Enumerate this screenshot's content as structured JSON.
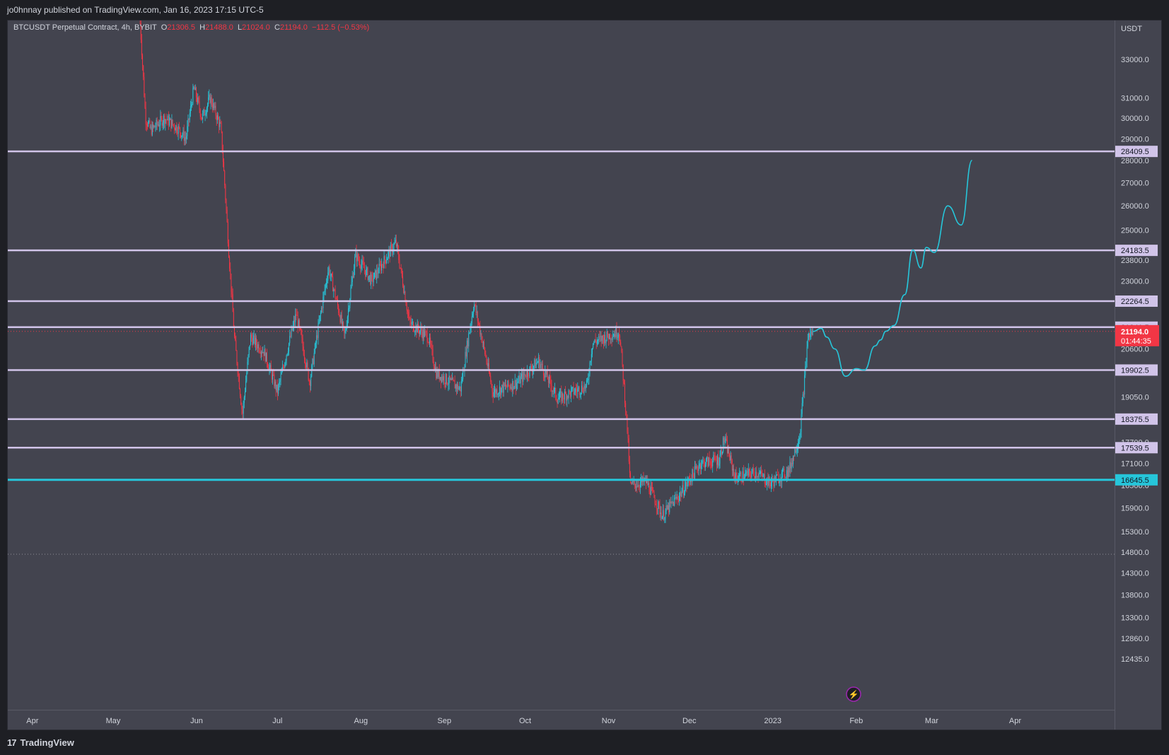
{
  "header": {
    "published_line": "jo0hnnay published on TradingView.com, Jan 16, 2023 17:15 UTC-5"
  },
  "legend": {
    "symbol": "BTCUSDT Perpetual Contract, 4h, BYBIT",
    "open_label": "O",
    "open": "21306.5",
    "high_label": "H",
    "high": "21488.0",
    "low_label": "L",
    "low": "21024.0",
    "close_label": "C",
    "close": "21194.0",
    "change": "−112.5 (−0.53%)"
  },
  "price_axis": {
    "currency": "USDT",
    "ticks": [
      {
        "label": "33000.0",
        "value": 33000
      },
      {
        "label": "31000.0",
        "value": 31000
      },
      {
        "label": "30000.0",
        "value": 30000
      },
      {
        "label": "29000.0",
        "value": 29000
      },
      {
        "label": "28000.0",
        "value": 28000
      },
      {
        "label": "27000.0",
        "value": 27000
      },
      {
        "label": "26000.0",
        "value": 26000
      },
      {
        "label": "25000.0",
        "value": 25000
      },
      {
        "label": "23800.0",
        "value": 23800
      },
      {
        "label": "23000.0",
        "value": 23000
      },
      {
        "label": "20600.0",
        "value": 20600
      },
      {
        "label": "19050.0",
        "value": 19050
      },
      {
        "label": "17700.0",
        "value": 17700
      },
      {
        "label": "17100.0",
        "value": 17100
      },
      {
        "label": "16500.0",
        "value": 16500
      },
      {
        "label": "15900.0",
        "value": 15900
      },
      {
        "label": "15300.0",
        "value": 15300
      },
      {
        "label": "14800.0",
        "value": 14800
      },
      {
        "label": "14300.0",
        "value": 14300
      },
      {
        "label": "13800.0",
        "value": 13800
      },
      {
        "label": "13300.0",
        "value": 13300
      },
      {
        "label": "12860.0",
        "value": 12860
      },
      {
        "label": "12435.0",
        "value": 12435
      }
    ],
    "current_price": {
      "label": "21194.0",
      "countdown": "01:44:35",
      "value": 21194,
      "color": "#f23645"
    }
  },
  "horizontal_levels": [
    {
      "label": "28409.5",
      "value": 28409.5,
      "color": "#d1c4e9"
    },
    {
      "label": "24183.5",
      "value": 24183.5,
      "color": "#d1c4e9"
    },
    {
      "label": "22264.5",
      "value": 22264.5,
      "color": "#d1c4e9"
    },
    {
      "label": "21341.5",
      "value": 21341.5,
      "color": "#d1c4e9"
    },
    {
      "label": "19902.5",
      "value": 19902.5,
      "color": "#d1c4e9"
    },
    {
      "label": "18375.5",
      "value": 18375.5,
      "color": "#d1c4e9"
    },
    {
      "label": "17539.5",
      "value": 17539.5,
      "color": "#d1c4e9"
    },
    {
      "label": "16645.5",
      "value": 16645.5,
      "color": "#26c6da"
    }
  ],
  "time_axis": {
    "labels": [
      "Apr",
      "May",
      "Jun",
      "Jul",
      "Aug",
      "Sep",
      "Oct",
      "Nov",
      "Dec",
      "2023",
      "Feb",
      "Mar",
      "Apr"
    ]
  },
  "colors": {
    "up": "#26c6da",
    "down": "#f23645",
    "background": "#43444f",
    "projection": "#26c6da"
  },
  "chart_data": {
    "type": "candlestick",
    "title": "BTCUSDT Perpetual Contract, 4h, BYBIT",
    "price_range": [
      12200,
      35000
    ],
    "price_path": [
      {
        "x": "2022-05-11",
        "y": 35000
      },
      {
        "x": "2022-05-13",
        "y": 30000
      },
      {
        "x": "2022-05-15",
        "y": 29400
      },
      {
        "x": "2022-05-20",
        "y": 30000
      },
      {
        "x": "2022-05-25",
        "y": 29500
      },
      {
        "x": "2022-05-28",
        "y": 29000
      },
      {
        "x": "2022-05-31",
        "y": 31500
      },
      {
        "x": "2022-06-03",
        "y": 30000
      },
      {
        "x": "2022-06-06",
        "y": 31000
      },
      {
        "x": "2022-06-10",
        "y": 29500
      },
      {
        "x": "2022-06-13",
        "y": 24000
      },
      {
        "x": "2022-06-15",
        "y": 21000
      },
      {
        "x": "2022-06-18",
        "y": 18500
      },
      {
        "x": "2022-06-21",
        "y": 21000
      },
      {
        "x": "2022-06-26",
        "y": 20500
      },
      {
        "x": "2022-07-01",
        "y": 19200
      },
      {
        "x": "2022-07-08",
        "y": 21800
      },
      {
        "x": "2022-07-13",
        "y": 19500
      },
      {
        "x": "2022-07-20",
        "y": 23500
      },
      {
        "x": "2022-07-26",
        "y": 21000
      },
      {
        "x": "2022-07-30",
        "y": 24000
      },
      {
        "x": "2022-08-05",
        "y": 23000
      },
      {
        "x": "2022-08-14",
        "y": 24500
      },
      {
        "x": "2022-08-19",
        "y": 21500
      },
      {
        "x": "2022-08-26",
        "y": 21000
      },
      {
        "x": "2022-08-29",
        "y": 19800
      },
      {
        "x": "2022-09-07",
        "y": 19300
      },
      {
        "x": "2022-09-12",
        "y": 22200
      },
      {
        "x": "2022-09-19",
        "y": 19200
      },
      {
        "x": "2022-09-28",
        "y": 19500
      },
      {
        "x": "2022-10-06",
        "y": 20200
      },
      {
        "x": "2022-10-13",
        "y": 19000
      },
      {
        "x": "2022-10-24",
        "y": 19400
      },
      {
        "x": "2022-10-26",
        "y": 20800
      },
      {
        "x": "2022-11-05",
        "y": 21200
      },
      {
        "x": "2022-11-08",
        "y": 18000
      },
      {
        "x": "2022-11-09",
        "y": 16500
      },
      {
        "x": "2022-11-15",
        "y": 16600
      },
      {
        "x": "2022-11-21",
        "y": 15700
      },
      {
        "x": "2022-11-28",
        "y": 16300
      },
      {
        "x": "2022-12-05",
        "y": 17100
      },
      {
        "x": "2022-12-12",
        "y": 17200
      },
      {
        "x": "2022-12-14",
        "y": 17800
      },
      {
        "x": "2022-12-18",
        "y": 16700
      },
      {
        "x": "2022-12-26",
        "y": 16850
      },
      {
        "x": "2022-12-31",
        "y": 16550
      },
      {
        "x": "2023-01-07",
        "y": 16900
      },
      {
        "x": "2023-01-11",
        "y": 17900
      },
      {
        "x": "2023-01-13",
        "y": 19800
      },
      {
        "x": "2023-01-14",
        "y": 21000
      },
      {
        "x": "2023-01-16",
        "y": 21194
      }
    ],
    "projection_path": [
      {
        "x": "2023-01-16",
        "y": 21194
      },
      {
        "x": "2023-01-19",
        "y": 21300
      },
      {
        "x": "2023-01-21",
        "y": 21000
      },
      {
        "x": "2023-01-24",
        "y": 20600
      },
      {
        "x": "2023-01-28",
        "y": 19700
      },
      {
        "x": "2023-02-01",
        "y": 19950
      },
      {
        "x": "2023-02-04",
        "y": 19900
      },
      {
        "x": "2023-02-08",
        "y": 20700
      },
      {
        "x": "2023-02-10",
        "y": 20900
      },
      {
        "x": "2023-02-12",
        "y": 21200
      },
      {
        "x": "2023-02-15",
        "y": 21400
      },
      {
        "x": "2023-02-19",
        "y": 22500
      },
      {
        "x": "2023-02-22",
        "y": 24200
      },
      {
        "x": "2023-02-25",
        "y": 23500
      },
      {
        "x": "2023-02-27",
        "y": 24300
      },
      {
        "x": "2023-03-02",
        "y": 24100
      },
      {
        "x": "2023-03-07",
        "y": 26000
      },
      {
        "x": "2023-03-12",
        "y": 25200
      },
      {
        "x": "2023-03-16",
        "y": 28000
      }
    ]
  }
}
